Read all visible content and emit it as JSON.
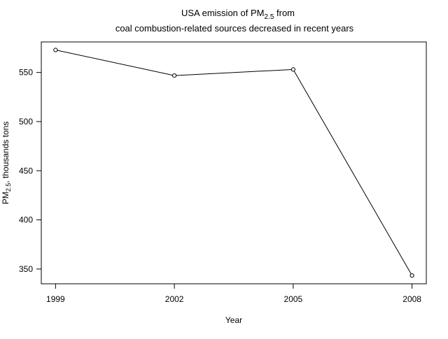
{
  "chart_data": {
    "type": "line",
    "title": {
      "line1_prefix": "USA emission of PM",
      "line1_subscript": "2.5",
      "line1_suffix": " from",
      "line2": "coal combustion-related sources decreased in recent years"
    },
    "xlabel": "Year",
    "ylabel": {
      "prefix": "PM",
      "subscript": "2.5",
      "suffix": ", thousands tons"
    },
    "x": [
      1999,
      2002,
      2005,
      2008
    ],
    "x_tick_labels": [
      "1999",
      "2002",
      "2005",
      "2008"
    ],
    "y": [
      572.8,
      546.8,
      553.0,
      343.4
    ],
    "y_ticks": [
      350,
      400,
      450,
      500,
      550
    ],
    "y_tick_labels": [
      "350",
      "400",
      "450",
      "500",
      "550"
    ],
    "xlim": [
      1998.64,
      2008.36
    ],
    "ylim": [
      335,
      581
    ],
    "marker": "open-circle",
    "line_color": "#000000",
    "grid": false,
    "legend": "none"
  }
}
